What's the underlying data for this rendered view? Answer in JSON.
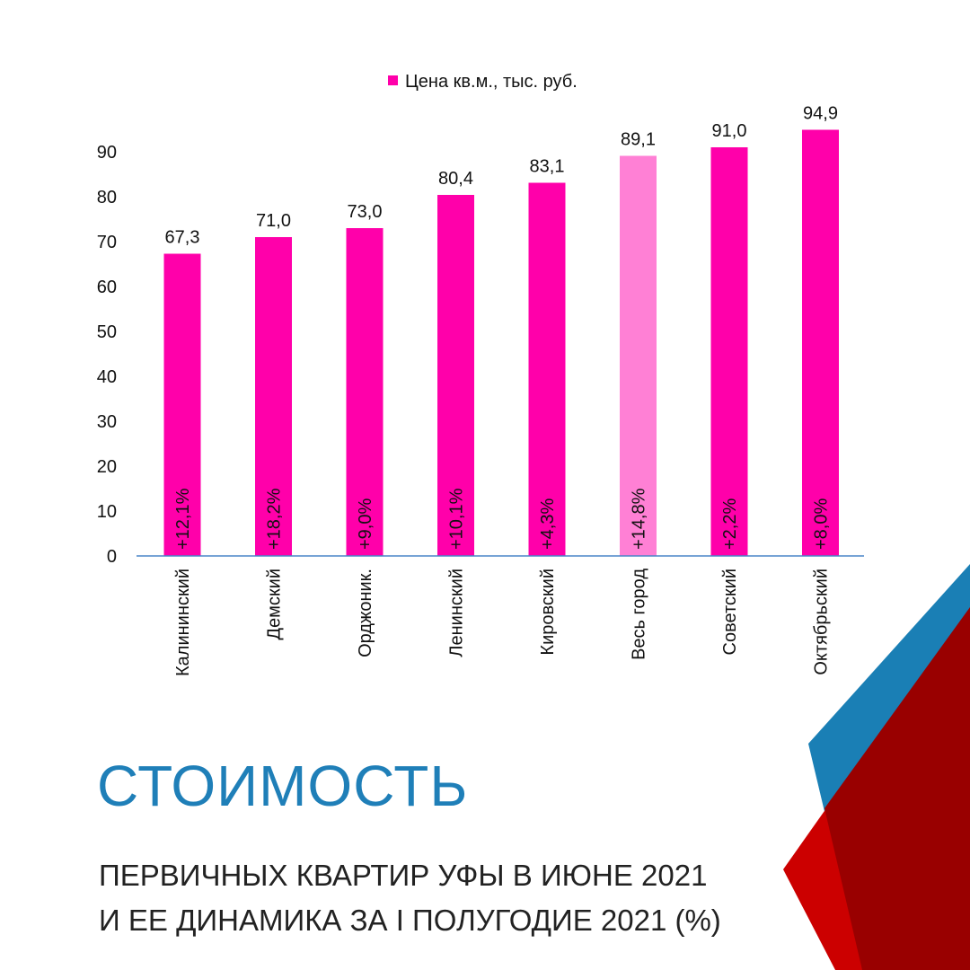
{
  "chart_data": {
    "type": "bar",
    "legend": {
      "label": "Цена кв.м., тыс. руб.",
      "placement": "top-center",
      "color": "#ff00aa"
    },
    "categories": [
      "Калининский",
      "Демский",
      "Орджоник.",
      "Ленинский",
      "Кировский",
      "Весь город",
      "Советский",
      "Октябрьский"
    ],
    "series": [
      {
        "name": "Цена кв.м., тыс. руб.",
        "values": [
          67.3,
          71.0,
          73.0,
          80.4,
          83.1,
          89.1,
          91.0,
          94.9
        ],
        "value_labels": [
          "67,3",
          "71,0",
          "73,0",
          "80,4",
          "83,1",
          "89,1",
          "91,0",
          "94,9"
        ],
        "change_labels": [
          "+12,1%",
          "+18,2%",
          "+9,0%",
          "+10,1%",
          "+4,3%",
          "+14,8%",
          "+2,2%",
          "+8,0%"
        ]
      }
    ],
    "highlight_category": "Весь город",
    "bar_color": "#ff00aa",
    "highlight_color": "#ff80d5",
    "yticks": [
      "0",
      "10",
      "20",
      "30",
      "40",
      "50",
      "60",
      "70",
      "80",
      "90"
    ],
    "ylim": [
      0,
      95
    ],
    "grid": false
  },
  "heading": {
    "title": "СТОИМОСТЬ",
    "subtitle_line1": "ПЕРВИЧНЫХ КВАРТИР УФЫ В ИЮНЕ 2021",
    "subtitle_line2": "И ЕЕ ДИНАМИКА ЗА I ПОЛУГОДИЕ 2021 (%)"
  },
  "colors": {
    "title": "#1f7fb8",
    "decor_blue": "#1a7fb5",
    "decor_red": "#cc0000",
    "decor_darkred": "#990000",
    "axis": "#4a86c8"
  }
}
